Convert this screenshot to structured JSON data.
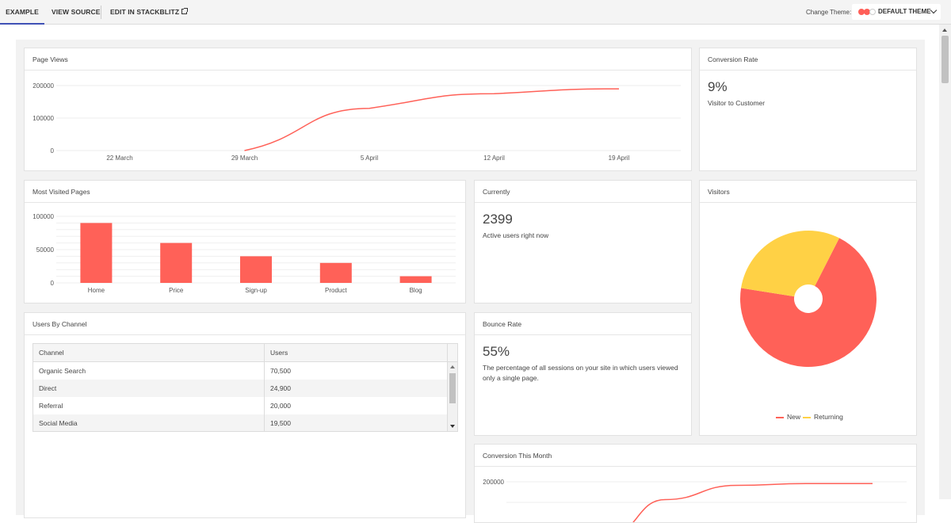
{
  "tabs": [
    {
      "label": "EXAMPLE",
      "active": true
    },
    {
      "label": "VIEW SOURCE",
      "active": false
    },
    {
      "label": "EDIT IN STACKBLITZ",
      "active": false
    }
  ],
  "theme": {
    "label": "Change Theme:",
    "selected": "DEFAULT THEME",
    "swatch_colors": [
      "#ff5f58",
      "#ff5f58",
      "#dddddd"
    ]
  },
  "cards": {
    "page_views": {
      "title": "Page Views"
    },
    "conversion_rate": {
      "title": "Conversion Rate",
      "value": "9%",
      "subtitle": "Visitor to Customer"
    },
    "most_visited": {
      "title": "Most Visited Pages"
    },
    "currently": {
      "title": "Currently",
      "value": "2399",
      "subtitle": "Active users right now"
    },
    "visitors": {
      "title": "Visitors"
    },
    "users_by_channel": {
      "title": "Users By Channel"
    },
    "bounce_rate": {
      "title": "Bounce Rate",
      "value": "55%",
      "subtitle": "The percentage of all sessions on your site in which users viewed only a single page."
    },
    "conversion_month": {
      "title": "Conversion This Month"
    }
  },
  "table": {
    "columns": [
      "Channel",
      "Users"
    ],
    "rows": [
      [
        "Organic Search",
        "70,500"
      ],
      [
        "Direct",
        "24,900"
      ],
      [
        "Referral",
        "20,000"
      ],
      [
        "Social Media",
        "19,500"
      ]
    ]
  },
  "colors": {
    "primary": "#ff6158",
    "secondary": "#ffd145",
    "accent": "#3f51b5"
  },
  "chart_data": [
    {
      "type": "line",
      "title": "Page Views",
      "x_ticks": [
        "22 March",
        "29 March",
        "5 April",
        "12 April",
        "19 April"
      ],
      "y_ticks": [
        "0",
        "100000",
        "200000"
      ],
      "ylim": [
        0,
        200000
      ],
      "series": [
        {
          "x": [
            "29 March",
            "5 April",
            "12 April",
            "19 April"
          ],
          "values": [
            0,
            130000,
            175000,
            190000
          ]
        }
      ]
    },
    {
      "type": "bar",
      "title": "Most Visited Pages",
      "categories": [
        "Home",
        "Price",
        "Sign-up",
        "Product",
        "Blog"
      ],
      "values": [
        90000,
        60000,
        40000,
        30000,
        10000
      ],
      "y_ticks": [
        "0",
        "50000",
        "100000"
      ],
      "ylim": [
        0,
        100000
      ]
    },
    {
      "type": "pie",
      "title": "Visitors",
      "labels": [
        "New",
        "Returning"
      ],
      "values": [
        70,
        30
      ],
      "legend": "bottom"
    },
    {
      "type": "line",
      "title": "Conversion This Month",
      "y_ticks": [
        "200000"
      ],
      "ylim": [
        0,
        200000
      ],
      "series": [
        {
          "values": [
            50000,
            150000,
            190000,
            195000,
            195000
          ]
        }
      ]
    }
  ]
}
